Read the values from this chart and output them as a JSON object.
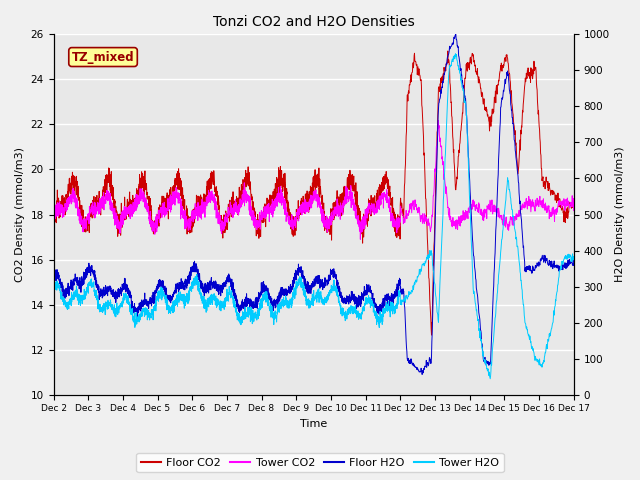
{
  "title": "Tonzi CO2 and H2O Densities",
  "xlabel": "Time",
  "ylabel_left": "CO2 Density (mmol/m3)",
  "ylabel_right": "H2O Density (mmol/m3)",
  "ylim_left": [
    10,
    26
  ],
  "ylim_right": [
    0,
    1000
  ],
  "yticks_left": [
    10,
    12,
    14,
    16,
    18,
    20,
    22,
    24,
    26
  ],
  "yticks_right": [
    0,
    100,
    200,
    300,
    400,
    500,
    600,
    700,
    800,
    900,
    1000
  ],
  "xtick_labels": [
    "Dec 2",
    "Dec 3",
    "Dec 4",
    "Dec 5",
    "Dec 6",
    "Dec 7",
    "Dec 8",
    "Dec 9",
    "Dec 10",
    "Dec 11",
    "Dec 12",
    "Dec 13",
    "Dec 14",
    "Dec 15",
    "Dec 16",
    "Dec 17"
  ],
  "annotation_text": "TZ_mixed",
  "annotation_color": "#990000",
  "annotation_bg": "#ffff99",
  "colors": {
    "floor_co2": "#cc0000",
    "tower_co2": "#ff00ff",
    "floor_h2o": "#0000cc",
    "tower_h2o": "#00ccff"
  },
  "legend_labels": [
    "Floor CO2",
    "Tower CO2",
    "Floor H2O",
    "Tower H2O"
  ],
  "fig_bg": "#f0f0f0",
  "plot_bg": "#e8e8e8",
  "grid_color": "#ffffff"
}
